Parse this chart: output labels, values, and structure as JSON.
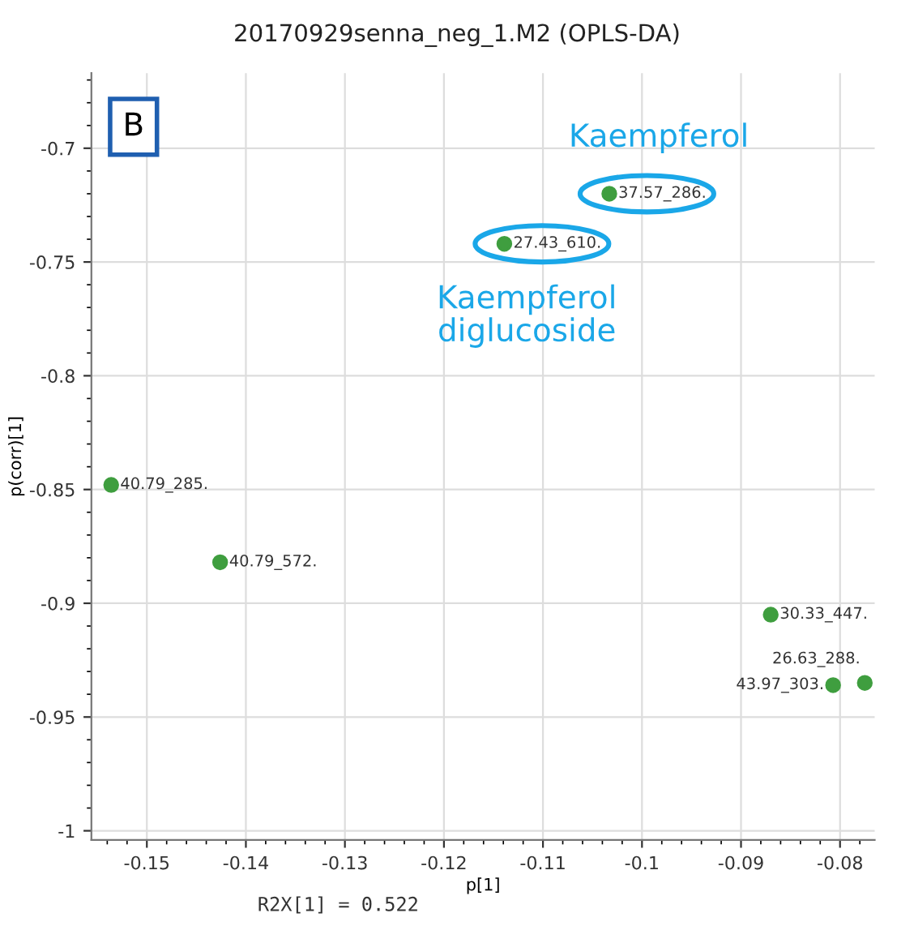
{
  "chart_data": {
    "type": "scatter",
    "title": "20170929senna_neg_1.M2 (OPLS-DA)",
    "xlabel": "p[1]",
    "ylabel": "p(corr)[1]",
    "series": [
      {
        "color": "#3f9e3f",
        "x": [
          -0.1033,
          -0.1139,
          -0.1536,
          -0.1426,
          -0.087,
          -0.0807,
          -0.0775
        ],
        "values": [
          -0.72,
          -0.742,
          -0.848,
          -0.882,
          -0.905,
          -0.936,
          -0.935
        ],
        "value_labels": [
          "37.57_286.",
          "27.43_610.",
          "40.79_285.",
          "40.79_572.",
          "30.33_447.",
          "43.97_303.",
          "26.63_288."
        ]
      }
    ],
    "annotations": [
      "B",
      "R2X[1] = 0.522",
      {
        "text": "Kaempferol",
        "x": -0.1033,
        "y": -0.72
      },
      {
        "text": "Kaempferol\ndiglucoside",
        "x": -0.1139,
        "y": -0.742
      }
    ],
    "xlim": [
      -0.1556,
      -0.0765
    ],
    "ylim": [
      -1.004,
      -0.667
    ],
    "xticks": [
      -0.15,
      -0.14,
      -0.13,
      -0.12,
      -0.11,
      -0.1,
      -0.09,
      -0.08
    ],
    "yticks": [
      -1,
      -0.95,
      -0.9,
      -0.85,
      -0.8,
      -0.75,
      -0.7
    ],
    "grid": true,
    "marker": "circle"
  }
}
